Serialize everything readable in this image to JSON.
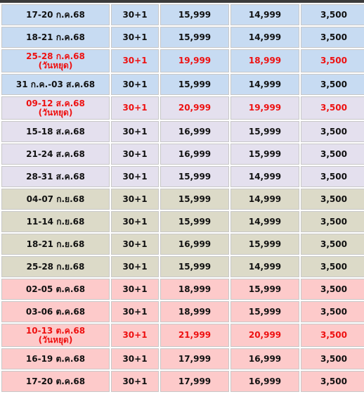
{
  "colors": {
    "blue_row": "#c7dbf2",
    "lavender_row": "#e4e0ee",
    "olive_row": "#dcdac8",
    "pink_row": "#fdcaca",
    "holiday_text": "#ee1111",
    "normal_text": "#111111"
  },
  "rows": [
    {
      "date": "17-20 ก.ค.68",
      "note": "",
      "days": "30+1",
      "price1": "15,999",
      "price2": "14,999",
      "price3": "3,500",
      "group": "blue",
      "holiday": false
    },
    {
      "date": "18-21 ก.ค.68",
      "note": "",
      "days": "30+1",
      "price1": "15,999",
      "price2": "14,999",
      "price3": "3,500",
      "group": "blue",
      "holiday": false
    },
    {
      "date": "25-28 ก.ค.68",
      "note": "(วันหยุด)",
      "days": "30+1",
      "price1": "19,999",
      "price2": "18,999",
      "price3": "3,500",
      "group": "blue",
      "holiday": true
    },
    {
      "date": "31 ก.ค.-03 ส.ค.68",
      "note": "",
      "days": "30+1",
      "price1": "15,999",
      "price2": "14,999",
      "price3": "3,500",
      "group": "blue",
      "holiday": false
    },
    {
      "date": "09-12 ส.ค.68",
      "note": "(วันหยุด)",
      "days": "30+1",
      "price1": "20,999",
      "price2": "19,999",
      "price3": "3,500",
      "group": "lav",
      "holiday": true
    },
    {
      "date": "15-18 ส.ค.68",
      "note": "",
      "days": "30+1",
      "price1": "16,999",
      "price2": "15,999",
      "price3": "3,500",
      "group": "lav",
      "holiday": false
    },
    {
      "date": "21-24 ส.ค.68",
      "note": "",
      "days": "30+1",
      "price1": "16,999",
      "price2": "15,999",
      "price3": "3,500",
      "group": "lav",
      "holiday": false
    },
    {
      "date": "28-31 ส.ค.68",
      "note": "",
      "days": "30+1",
      "price1": "15,999",
      "price2": "14,999",
      "price3": "3,500",
      "group": "lav",
      "holiday": false
    },
    {
      "date": "04-07 ก.ย.68",
      "note": "",
      "days": "30+1",
      "price1": "15,999",
      "price2": "14,999",
      "price3": "3,500",
      "group": "olive",
      "holiday": false
    },
    {
      "date": "11-14 ก.ย.68",
      "note": "",
      "days": "30+1",
      "price1": "15,999",
      "price2": "14,999",
      "price3": "3,500",
      "group": "olive",
      "holiday": false
    },
    {
      "date": "18-21 ก.ย.68",
      "note": "",
      "days": "30+1",
      "price1": "16,999",
      "price2": "15,999",
      "price3": "3,500",
      "group": "olive",
      "holiday": false
    },
    {
      "date": "25-28 ก.ย.68",
      "note": "",
      "days": "30+1",
      "price1": "15,999",
      "price2": "14,999",
      "price3": "3,500",
      "group": "olive",
      "holiday": false
    },
    {
      "date": "02-05 ต.ค.68",
      "note": "",
      "days": "30+1",
      "price1": "18,999",
      "price2": "15,999",
      "price3": "3,500",
      "group": "pink",
      "holiday": false
    },
    {
      "date": "03-06 ต.ค.68",
      "note": "",
      "days": "30+1",
      "price1": "18,999",
      "price2": "15,999",
      "price3": "3,500",
      "group": "pink",
      "holiday": false
    },
    {
      "date": "10-13 ต.ค.68",
      "note": "(วันหยุด)",
      "days": "30+1",
      "price1": "21,999",
      "price2": "20,999",
      "price3": "3,500",
      "group": "pink",
      "holiday": true
    },
    {
      "date": "16-19 ต.ค.68",
      "note": "",
      "days": "30+1",
      "price1": "17,999",
      "price2": "16,999",
      "price3": "3,500",
      "group": "pink",
      "holiday": false
    },
    {
      "date": "17-20 ต.ค.68",
      "note": "",
      "days": "30+1",
      "price1": "17,999",
      "price2": "16,999",
      "price3": "3,500",
      "group": "pink",
      "holiday": false
    }
  ]
}
